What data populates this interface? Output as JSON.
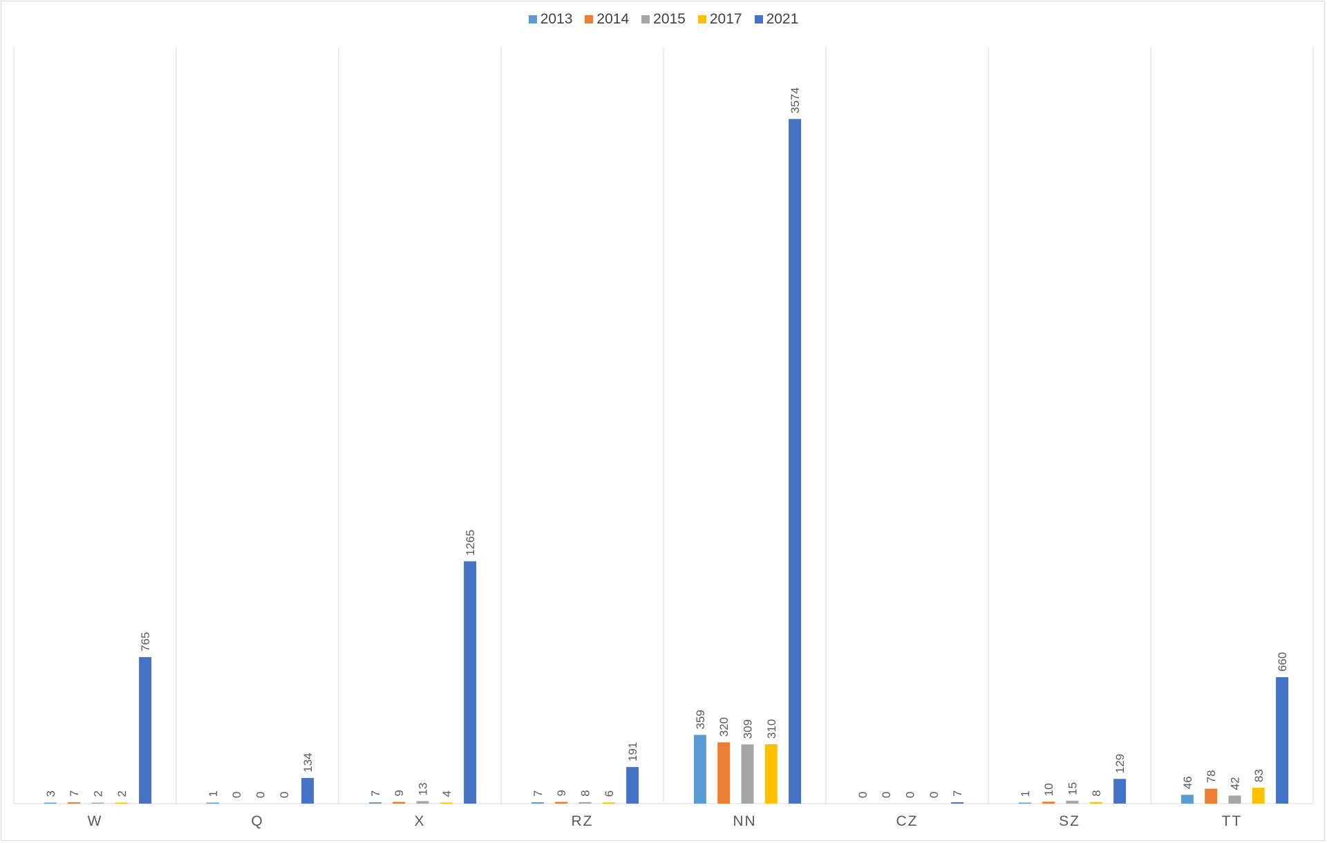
{
  "chart_data": {
    "type": "bar",
    "categories": [
      "W",
      "Q",
      "X",
      "RZ",
      "NN",
      "CZ",
      "SZ",
      "TT"
    ],
    "series": [
      {
        "name": "2013",
        "color": "#5b9bd5",
        "values": [
          3,
          1,
          7,
          7,
          359,
          0,
          1,
          46
        ]
      },
      {
        "name": "2014",
        "color": "#ed7d31",
        "values": [
          7,
          0,
          9,
          9,
          320,
          0,
          10,
          78
        ]
      },
      {
        "name": "2015",
        "color": "#a5a5a5",
        "values": [
          2,
          0,
          13,
          8,
          309,
          0,
          15,
          42
        ]
      },
      {
        "name": "2017",
        "color": "#ffc000",
        "values": [
          2,
          0,
          4,
          6,
          310,
          0,
          8,
          83
        ]
      },
      {
        "name": "2021",
        "color": "#4472c4",
        "values": [
          765,
          134,
          1265,
          191,
          3574,
          7,
          129,
          660
        ]
      }
    ],
    "title": "",
    "xlabel": "",
    "ylabel": "",
    "ylim": [
      0,
      3950
    ],
    "legend_position": "top",
    "grid": "vertical category separators",
    "data_labels": true
  }
}
